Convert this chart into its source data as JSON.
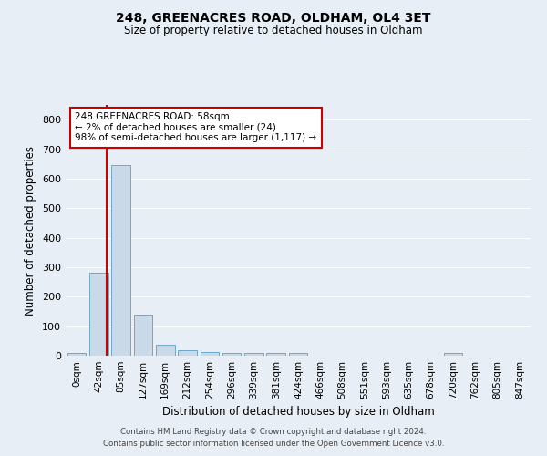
{
  "title1": "248, GREENACRES ROAD, OLDHAM, OL4 3ET",
  "title2": "Size of property relative to detached houses in Oldham",
  "xlabel": "Distribution of detached houses by size in Oldham",
  "ylabel": "Number of detached properties",
  "bar_labels": [
    "0sqm",
    "42sqm",
    "85sqm",
    "127sqm",
    "169sqm",
    "212sqm",
    "254sqm",
    "296sqm",
    "339sqm",
    "381sqm",
    "424sqm",
    "466sqm",
    "508sqm",
    "551sqm",
    "593sqm",
    "635sqm",
    "678sqm",
    "720sqm",
    "762sqm",
    "805sqm",
    "847sqm"
  ],
  "bar_values": [
    8,
    280,
    645,
    138,
    38,
    20,
    12,
    10,
    8,
    8,
    8,
    0,
    0,
    0,
    0,
    0,
    0,
    8,
    0,
    0,
    0
  ],
  "bar_color": "#c9d9e8",
  "bar_edgecolor": "#6fa8c8",
  "ylim": [
    0,
    850
  ],
  "yticks": [
    0,
    100,
    200,
    300,
    400,
    500,
    600,
    700,
    800
  ],
  "property_line_color": "#cc0000",
  "annotation_text": "248 GREENACRES ROAD: 58sqm\n← 2% of detached houses are smaller (24)\n98% of semi-detached houses are larger (1,117) →",
  "annotation_box_color": "#cc0000",
  "footer1": "Contains HM Land Registry data © Crown copyright and database right 2024.",
  "footer2": "Contains public sector information licensed under the Open Government Licence v3.0.",
  "bg_color": "#e8eef5",
  "grid_color": "#ffffff"
}
